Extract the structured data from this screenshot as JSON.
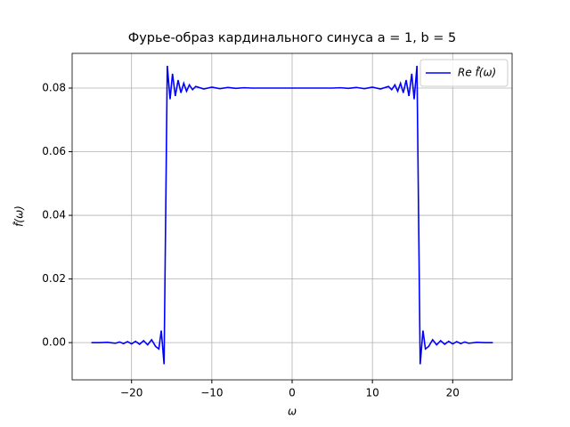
{
  "chart_data": {
    "type": "line",
    "title": "Фурье-образ кардинального синуса a = 1, b = 5",
    "x_label": "ω",
    "y_label": "f̂(ω)",
    "x": [
      -25,
      -24,
      -23,
      -22,
      -21.5,
      -21,
      -20.5,
      -20,
      -19.5,
      -19,
      -18.5,
      -18,
      -17.5,
      -17,
      -16.6,
      -16.3,
      -15.95,
      -15.75,
      -15.55,
      -15.2,
      -14.9,
      -14.55,
      -14.2,
      -13.85,
      -13.5,
      -13.15,
      -12.8,
      -12.4,
      -12,
      -11,
      -10,
      -9,
      -8,
      -7,
      -6,
      -5,
      -4,
      -3,
      -2,
      -1,
      0,
      1,
      2,
      3,
      4,
      5,
      6,
      7,
      8,
      9,
      10,
      11,
      12,
      12.4,
      12.8,
      13.15,
      13.5,
      13.85,
      14.2,
      14.55,
      14.9,
      15.2,
      15.55,
      15.75,
      15.95,
      16.3,
      16.6,
      17,
      17.5,
      18,
      18.5,
      19,
      19.5,
      20,
      20.5,
      21,
      21.5,
      22,
      23,
      24,
      25
    ],
    "series": [
      {
        "name": "Re f̂(ω)",
        "color": "#0000ff",
        "values": [
          0,
          0,
          0.0001,
          -0.0002,
          0.0002,
          -0.0003,
          0.0003,
          -0.0004,
          0.0004,
          -0.0005,
          0.0006,
          -0.0007,
          0.0009,
          -0.0012,
          -0.002,
          0.0038,
          -0.0068,
          0.04,
          0.087,
          0.0765,
          0.0845,
          0.0775,
          0.0825,
          0.0785,
          0.0815,
          0.079,
          0.081,
          0.0795,
          0.0805,
          0.0797,
          0.0803,
          0.0798,
          0.0802,
          0.0799,
          0.0801,
          0.08,
          0.08,
          0.08,
          0.08,
          0.08,
          0.08,
          0.08,
          0.08,
          0.08,
          0.08,
          0.08,
          0.0801,
          0.0799,
          0.0802,
          0.0798,
          0.0803,
          0.0797,
          0.0805,
          0.0795,
          0.081,
          0.079,
          0.0815,
          0.0785,
          0.0825,
          0.0775,
          0.0845,
          0.0765,
          0.087,
          0.04,
          -0.0068,
          0.0038,
          -0.002,
          -0.0012,
          0.0009,
          -0.0007,
          0.0006,
          -0.0005,
          0.0004,
          -0.0004,
          0.0003,
          -0.0003,
          0.0002,
          -0.0002,
          0.0001,
          0,
          0
        ]
      }
    ],
    "xlim": [
      -27.4,
      27.4
    ],
    "ylim": [
      -0.0117,
      0.0909
    ],
    "xticks": [
      {
        "value": -20,
        "label": "−20"
      },
      {
        "value": -10,
        "label": "−10"
      },
      0,
      10,
      20
    ],
    "yticks": [
      {
        "value": 0,
        "label": "0.00"
      },
      {
        "value": 0.02,
        "label": "0.02"
      },
      {
        "value": 0.04,
        "label": "0.04"
      },
      {
        "value": 0.06,
        "label": "0.06"
      },
      {
        "value": 0.08,
        "label": "0.08"
      }
    ],
    "grid": true,
    "legend": "upper right"
  }
}
